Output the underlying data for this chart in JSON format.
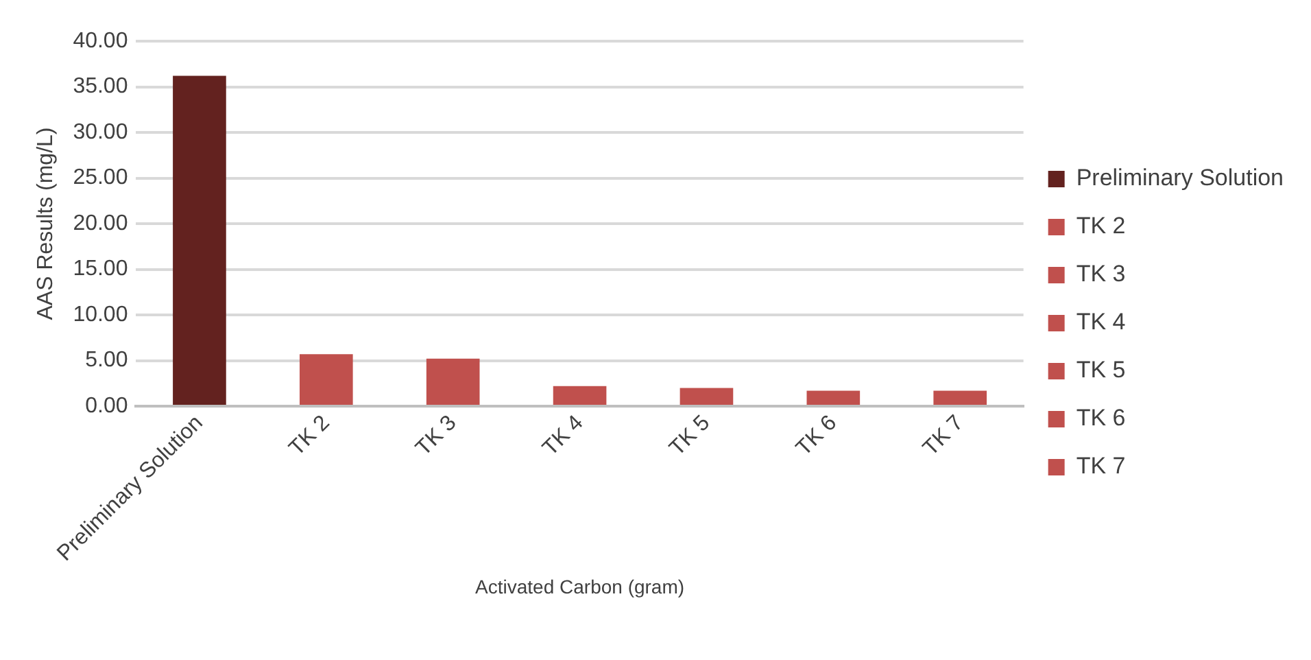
{
  "chart_data": {
    "type": "bar",
    "xlabel": "Activated Carbon (gram)",
    "ylabel": "AAS Results (mg/L)",
    "categories": [
      "Preliminary Solution",
      "TK 2",
      "TK 3",
      "TK 4",
      "TK 5",
      "TK 6",
      "TK 7"
    ],
    "series": [
      {
        "name": "Preliminary Solution",
        "color": "#63221f",
        "values": [
          36.2,
          null,
          null,
          null,
          null,
          null,
          null
        ]
      },
      {
        "name": "TK 2",
        "color": "#c0504d",
        "values": [
          null,
          5.7,
          null,
          null,
          null,
          null,
          null
        ]
      },
      {
        "name": "TK 3",
        "color": "#c0504d",
        "values": [
          null,
          null,
          5.2,
          null,
          null,
          null,
          null
        ]
      },
      {
        "name": "TK 4",
        "color": "#c0504d",
        "values": [
          null,
          null,
          null,
          2.2,
          null,
          null,
          null
        ]
      },
      {
        "name": "TK 5",
        "color": "#c0504d",
        "values": [
          null,
          null,
          null,
          null,
          2.0,
          null,
          null
        ]
      },
      {
        "name": "TK 6",
        "color": "#c0504d",
        "values": [
          null,
          null,
          null,
          null,
          null,
          1.7,
          null
        ]
      },
      {
        "name": "TK 7",
        "color": "#c0504d",
        "values": [
          null,
          null,
          null,
          null,
          null,
          null,
          1.7
        ]
      }
    ],
    "ylim": [
      0,
      40
    ],
    "yticks": [
      {
        "value": 0,
        "label": "0.00"
      },
      {
        "value": 5,
        "label": "5.00"
      },
      {
        "value": 10,
        "label": "10.00"
      },
      {
        "value": 15,
        "label": "15.00"
      },
      {
        "value": 20,
        "label": "20.00"
      },
      {
        "value": 25,
        "label": "25.00"
      },
      {
        "value": 30,
        "label": "30.00"
      },
      {
        "value": 35,
        "label": "35.00"
      },
      {
        "value": 40,
        "label": "40.00"
      }
    ],
    "grid": "y",
    "legend": "right"
  }
}
